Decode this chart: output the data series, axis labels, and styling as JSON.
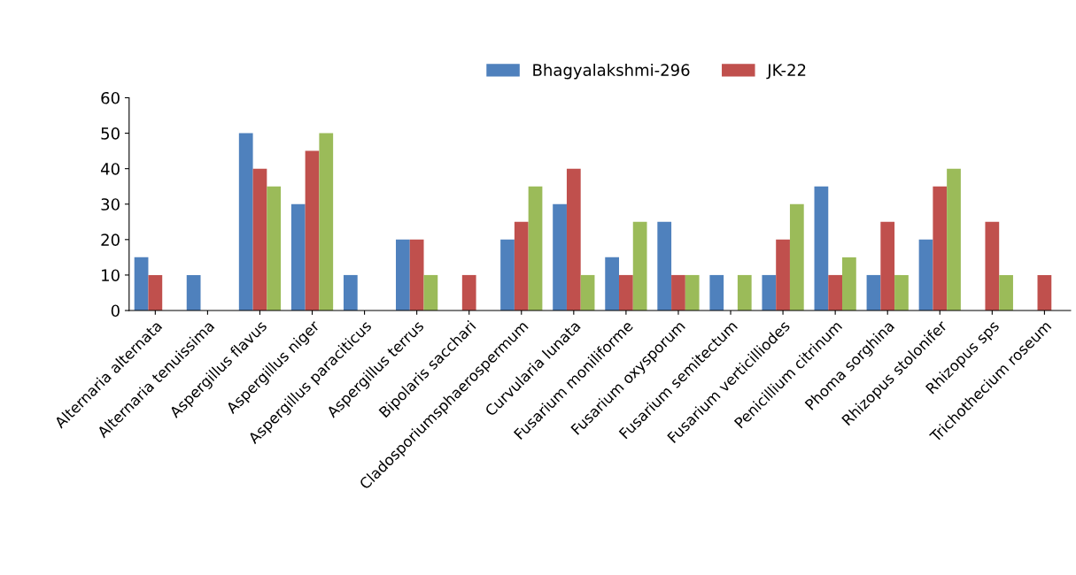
{
  "chart_data": {
    "type": "bar",
    "categories": [
      "Alternaria alternata",
      "Alternaria tenuissima",
      "Aspergillus flavus",
      "Aspergillus niger",
      "Aspergillus paraciticus",
      "Aspergillus terrus",
      "Bipolaris sacchari",
      "Cladosporiumsphaerospermum",
      "Curvularia lunata",
      "Fusarium moniliforme",
      "Fusarium oxysporum",
      "Fusarium semitectum",
      "Fusarium verticilliodes",
      "Penicillium citrinum",
      "Phoma sorghina",
      "Rhizopus stolonifer",
      "Rhizopus sps",
      "Trichothecium roseum"
    ],
    "series": [
      {
        "name": "Bhagyalakshmi-296",
        "color": "#4f81bd",
        "values": [
          15,
          10,
          50,
          30,
          10,
          20,
          0,
          20,
          30,
          15,
          25,
          10,
          10,
          35,
          10,
          20,
          0,
          0
        ]
      },
      {
        "name": "JK-22",
        "color": "#c0504d",
        "values": [
          10,
          0,
          40,
          45,
          0,
          20,
          10,
          25,
          40,
          10,
          10,
          0,
          20,
          10,
          25,
          35,
          25,
          10
        ]
      },
      {
        "color": "#9bbb59",
        "values": [
          0,
          0,
          35,
          50,
          0,
          10,
          0,
          35,
          10,
          25,
          10,
          10,
          30,
          15,
          10,
          40,
          10,
          0
        ]
      }
    ],
    "ylim": [
      0,
      60
    ],
    "yticks": [
      0,
      10,
      20,
      30,
      40,
      50,
      60
    ],
    "grid": false,
    "legend": "top"
  }
}
